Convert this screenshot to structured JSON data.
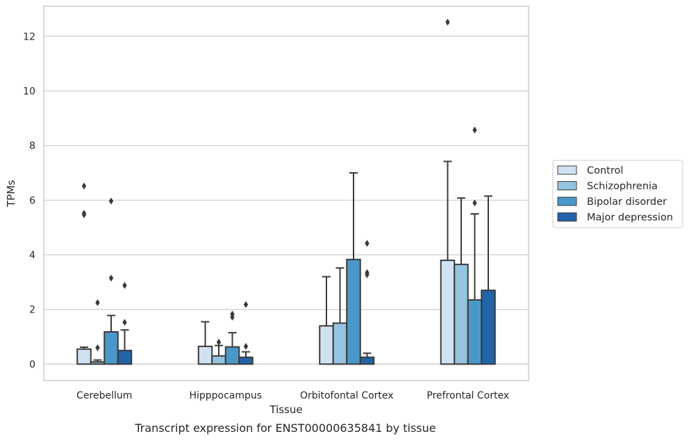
{
  "chart_data": {
    "type": "bar",
    "title": "",
    "caption": "Transcript expression for ENST00000635841 by tissue",
    "xlabel": "Tissue",
    "ylabel": "TPMs",
    "ylim": [
      -0.6,
      13.1
    ],
    "yticks": [
      0,
      2,
      4,
      6,
      8,
      10,
      12
    ],
    "grid": "horizontal",
    "legend_position": "right-center",
    "categories": [
      "Cerebellum",
      "Hipppocampus",
      "Orbitofontal Cortex",
      "Prefrontal Cortex"
    ],
    "series": [
      {
        "name": "Control",
        "color": "#d0e1f2",
        "values": [
          0.55,
          0.65,
          1.4,
          3.8
        ],
        "whisker_top": [
          0.62,
          1.55,
          3.2,
          7.42
        ],
        "outliers": [
          [
            6.52,
            5.52,
            5.47
          ],
          [],
          [],
          [
            12.52
          ]
        ]
      },
      {
        "name": "Schizophrenia",
        "color": "#94c4df",
        "values": [
          0.08,
          0.3,
          1.5,
          3.65
        ],
        "whisker_top": [
          0.15,
          0.68,
          3.52,
          6.08
        ],
        "outliers": [
          [
            2.25,
            0.6
          ],
          [
            0.8
          ],
          [],
          []
        ]
      },
      {
        "name": "Bipolar disorder",
        "color": "#4a98c9",
        "values": [
          1.18,
          0.63,
          3.83,
          2.35
        ],
        "whisker_top": [
          1.78,
          1.15,
          7.0,
          5.5
        ],
        "outliers": [
          [
            5.97,
            3.15
          ],
          [
            1.83,
            1.72
          ],
          [],
          [
            8.57,
            5.9
          ]
        ]
      },
      {
        "name": "Major depression",
        "color": "#2264a8",
        "values": [
          0.5,
          0.25,
          0.25,
          2.7
        ],
        "whisker_top": [
          1.25,
          0.45,
          0.4,
          6.15
        ],
        "outliers": [
          [
            2.88,
            1.53
          ],
          [
            2.18,
            0.65
          ],
          [
            4.42,
            3.35,
            3.27
          ],
          []
        ]
      }
    ]
  }
}
